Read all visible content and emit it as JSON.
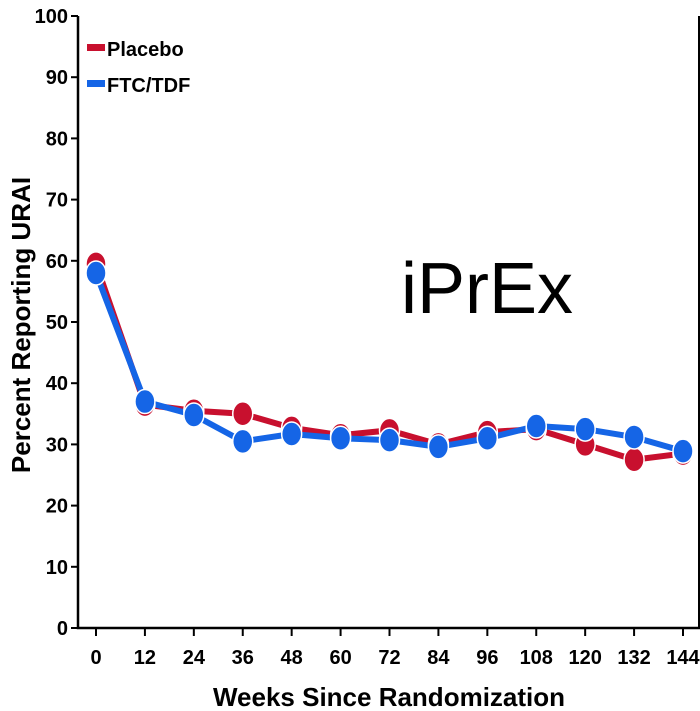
{
  "chart_data": {
    "type": "line",
    "xlabel": "Weeks Since Randomization",
    "ylabel": "Percent Reporting URAI",
    "annotation": "iPrEx",
    "x": [
      0,
      12,
      24,
      36,
      48,
      60,
      72,
      84,
      96,
      108,
      120,
      132,
      144
    ],
    "xticks": [
      "0",
      "12",
      "24",
      "36",
      "48",
      "60",
      "72",
      "84",
      "96",
      "108",
      "120",
      "132",
      "144"
    ],
    "ylim": [
      0,
      100
    ],
    "yticks": [
      "0",
      "10",
      "20",
      "30",
      "40",
      "50",
      "60",
      "70",
      "80",
      "90",
      "100"
    ],
    "grid": false,
    "legend_position": "top-left",
    "series": [
      {
        "name": "Placebo",
        "color": "#c8102e",
        "values": [
          59.5,
          36.5,
          35.5,
          35,
          32.7,
          31.5,
          32.3,
          30,
          32,
          32.5,
          30,
          27.5,
          28.5
        ]
      },
      {
        "name": "FTC/TDF",
        "color": "#1565e6",
        "values": [
          58,
          37,
          34.8,
          30.5,
          31.7,
          31,
          30.7,
          29.6,
          31,
          33,
          32.5,
          31.2,
          28.9
        ]
      }
    ]
  }
}
